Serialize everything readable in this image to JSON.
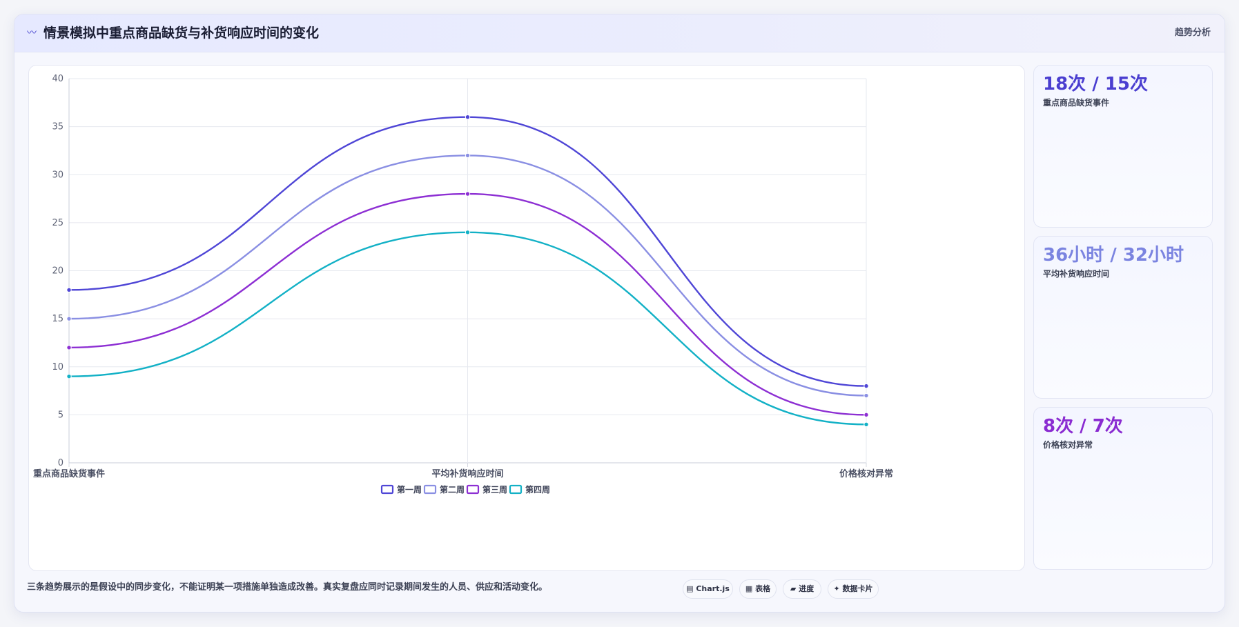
{
  "header": {
    "icon": "trend-icon",
    "title": "情景模拟中重点商品缺货与补货响应时间的变化",
    "tag": "趋势分析"
  },
  "chart_data": {
    "type": "line",
    "categories": [
      "重点商品缺货事件",
      "平均补货响应时间",
      "价格核对异常"
    ],
    "ylim": [
      0,
      40
    ],
    "yticks": [
      0,
      5,
      10,
      15,
      20,
      25,
      30,
      35,
      40
    ],
    "grid": true,
    "legend_position": "bottom",
    "series": [
      {
        "name": "第一周",
        "values": [
          18,
          36,
          8
        ],
        "color": "#4f46d6"
      },
      {
        "name": "第二周",
        "values": [
          15,
          32,
          7
        ],
        "color": "#8a8fe3"
      },
      {
        "name": "第三周",
        "values": [
          12,
          28,
          5
        ],
        "color": "#8d2fd3"
      },
      {
        "name": "第四周",
        "values": [
          9,
          24,
          4
        ],
        "color": "#13b1c6"
      }
    ]
  },
  "stats": [
    {
      "value": "18次 / 15次",
      "label": "重点商品缺货事件",
      "color": "#4a3ed0"
    },
    {
      "value": "36小时 / 32小时",
      "label": "平均补货响应时间",
      "color": "#7b84e0"
    },
    {
      "value": "8次 / 7次",
      "label": "价格核对异常",
      "color": "#8a2bd1"
    }
  ],
  "footer": {
    "note": "三条趋势展示的是假设中的同步变化，不能证明某一项措施单独造成改善。真实复盘应同时记录期间发生的人员、供应和活动变化。",
    "pills": [
      {
        "icon": "▤",
        "label": "Chart.js"
      },
      {
        "icon": "▦",
        "label": "表格"
      },
      {
        "icon": "▰",
        "label": "进度"
      },
      {
        "icon": "✦",
        "label": "数据卡片"
      }
    ]
  }
}
